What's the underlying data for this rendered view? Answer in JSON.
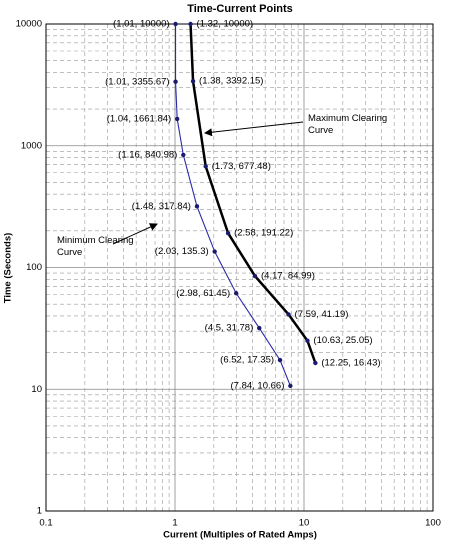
{
  "chart_data": {
    "type": "line",
    "title": "Time-Current Points",
    "x_label": "Current (Multiples of Rated Amps)",
    "y_label": "Time (Seconds)",
    "xscale": "log",
    "yscale": "log",
    "grid": true,
    "xlim": [
      0.1,
      100
    ],
    "xticks": [
      0.1,
      1,
      10,
      100
    ],
    "ylim": [
      1,
      10000
    ],
    "yticks": [
      1,
      10,
      100,
      1000,
      10000
    ],
    "series": [
      {
        "name": "Minimum Clearing Curve",
        "color": "#2a2aa8",
        "x": [
          1.01,
          1.01,
          1.04,
          1.16,
          1.48,
          2.03,
          2.98,
          4.5,
          6.52,
          7.84
        ],
        "values": [
          10000,
          3355.67,
          1661.84,
          840.98,
          317.84,
          135.3,
          61.45,
          31.78,
          17.35,
          10.66
        ],
        "value_labels": [
          "(1.01, 10000)",
          "(1.01, 3355.67)",
          "(1.04, 1661.84)",
          "(1.16, 840.98)",
          "(1.48, 317.84)",
          "(2.03, 135.3)",
          "(2.98, 61.45)",
          "(4.5, 31.78)",
          "(6.52, 17.35)",
          "(7.84, 10.66)"
        ]
      },
      {
        "name": "Maximum Clearing Curve",
        "color": "#000000",
        "x": [
          1.32,
          1.38,
          1.73,
          2.58,
          4.17,
          7.59,
          10.63,
          12.25
        ],
        "values": [
          10000,
          3392.15,
          677.48,
          191.22,
          84.99,
          41.19,
          25.05,
          16.43
        ],
        "value_labels": [
          "(1.32, 10000)",
          "(1.38, 3392.15)",
          "(1.73, 677.48)",
          "(2.58, 191.22)",
          "(4.17, 84.99)",
          "(7.59, 41.19)",
          "(10.63, 25.05)",
          "(12.25, 16.43)"
        ]
      }
    ]
  }
}
